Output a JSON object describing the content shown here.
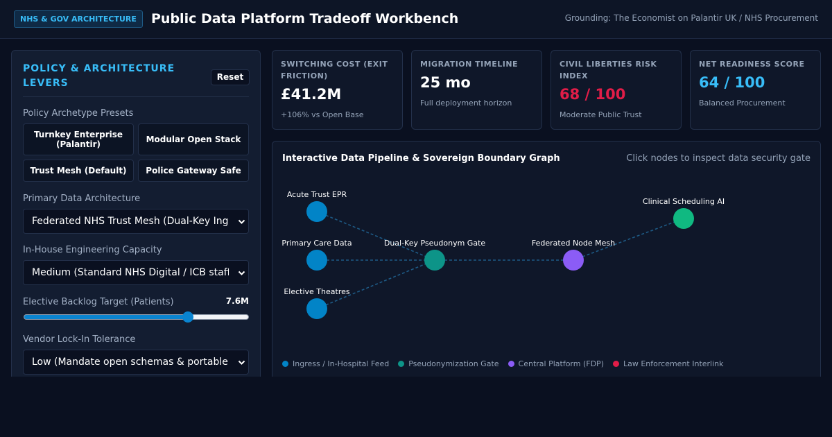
{
  "header": {
    "badge": "NHS & GOV ARCHITECTURE",
    "title": "Public Data Platform Tradeoff Workbench",
    "grounding": "Grounding: The Economist on Palantir UK / NHS Procurement"
  },
  "panel": {
    "title": "POLICY & ARCHITECTURE LEVERS",
    "reset_label": "Reset",
    "presets_label": "Policy Archetype Presets",
    "presets": [
      "Turnkey Enterprise (Palantir)",
      "Modular Open Stack",
      "Trust Mesh (Default)",
      "Police Gateway Safe"
    ],
    "architecture_label": "Primary Data Architecture",
    "architecture_value": "Federated NHS Trust Mesh (Dual-Key Ingress)",
    "capacity_label": "In-House Engineering Capacity",
    "capacity_value": "Medium (Standard NHS Digital / ICB staffing)",
    "backlog_label": "Elective Backlog Target (Patients)",
    "backlog_value": "7.6M",
    "backlog_fraction": 0.73,
    "lockin_label": "Vendor Lock-In Tolerance",
    "lockin_value": "Low (Mandate open schemas & portable exports)"
  },
  "metrics": [
    {
      "label": "SWITCHING COST (EXIT FRICTION)",
      "value": "£41.2M",
      "sub": "+106% vs Open Base",
      "color": "#ffffff"
    },
    {
      "label": "MIGRATION TIMELINE",
      "value": "25 mo",
      "sub": "Full deployment horizon",
      "color": "#ffffff"
    },
    {
      "label": "CIVIL LIBERTIES RISK INDEX",
      "value": "68 / 100",
      "sub": "Moderate Public Trust",
      "color": "#e11d48"
    },
    {
      "label": "NET READINESS SCORE",
      "value": "64 / 100",
      "sub": "Balanced Procurement",
      "color": "#38bdf8"
    }
  ],
  "graph": {
    "title": "Interactive Data Pipeline & Sovereign Boundary Graph",
    "hint": "Click nodes to inspect data security gate",
    "nodes": {
      "acute": "Acute Trust EPR",
      "primary": "Primary Care Data",
      "elective": "Elective Theatres",
      "gate": "Dual-Key Pseudonym Gate",
      "mesh": "Federated Node Mesh",
      "ai": "Clinical Scheduling AI"
    },
    "legend": [
      {
        "label": "Ingress / In-Hospital Feed",
        "color": "#0284c7"
      },
      {
        "label": "Pseudonymization Gate",
        "color": "#0d9488"
      },
      {
        "label": "Central Platform (FDP)",
        "color": "#8b5cf6"
      },
      {
        "label": "Law Enforcement Interlink",
        "color": "#e11d48"
      }
    ],
    "colors": {
      "ingress": "#0284c7",
      "gate": "#0d9488",
      "platform": "#8b5cf6",
      "ai": "#10b981",
      "edge": "#1e5a85"
    }
  }
}
